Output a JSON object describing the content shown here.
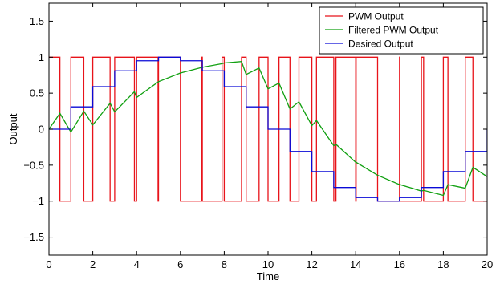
{
  "chart_data": {
    "type": "line",
    "title": "",
    "xlabel": "Time",
    "ylabel": "Output",
    "xlim": [
      0,
      20
    ],
    "ylim": [
      -1.75,
      1.75
    ],
    "x_ticks": [
      0,
      2,
      4,
      6,
      8,
      10,
      12,
      14,
      16,
      18,
      20
    ],
    "x_tick_labels": [
      "0",
      "2",
      "4",
      "6",
      "8",
      "10",
      "12",
      "14",
      "16",
      "18",
      "20"
    ],
    "y_ticks": [
      -1.5,
      -1,
      -0.5,
      0,
      0.5,
      1,
      1.5
    ],
    "y_tick_labels": [
      "−1.5",
      "−1",
      "−0.5",
      "0",
      "0.5",
      "1",
      "1.5"
    ],
    "grid": false,
    "legend_position": "top-right",
    "series": [
      {
        "name": "PWM Output",
        "color": "#e8131a",
        "step": true,
        "x": [
          0,
          0.5,
          0.5,
          1,
          1,
          1.59,
          1.59,
          2,
          2,
          2.79,
          2.79,
          3,
          3,
          3.9,
          3.9,
          4,
          4,
          4.98,
          4.98,
          5,
          5,
          6,
          6,
          6.98,
          6.98,
          7,
          7,
          7.9,
          7.9,
          8,
          8,
          8.79,
          8.79,
          9,
          9,
          9.59,
          9.59,
          10,
          10,
          10.5,
          10.5,
          11,
          11,
          11.41,
          11.41,
          12,
          12,
          12.21,
          12.21,
          13,
          13,
          13.1,
          13.1,
          14,
          14,
          14.02,
          14.02,
          15,
          15,
          16,
          16,
          16.02,
          16.02,
          17,
          17,
          17.1,
          17.1,
          18,
          18,
          18.21,
          18.21,
          19,
          19,
          19.35,
          19.35,
          20
        ],
        "y": [
          1,
          1,
          -1,
          -1,
          1,
          1,
          -1,
          -1,
          1,
          1,
          -1,
          -1,
          1,
          1,
          -1,
          -1,
          1,
          1,
          -1,
          -1,
          1,
          1,
          -1,
          -1,
          1,
          1,
          -1,
          -1,
          1,
          1,
          -1,
          -1,
          1,
          1,
          -1,
          -1,
          1,
          1,
          -1,
          -1,
          1,
          1,
          -1,
          -1,
          1,
          1,
          -1,
          -1,
          1,
          1,
          -1,
          -1,
          1,
          1,
          -1,
          -1,
          1,
          1,
          -1,
          -1,
          1,
          1,
          -1,
          -1,
          1,
          1,
          -1,
          -1,
          1,
          1,
          -1,
          -1,
          1,
          1,
          -1,
          -1
        ]
      },
      {
        "name": "Filtered PWM Output",
        "color": "#11a011",
        "step": false,
        "x": [
          0,
          0.5,
          1,
          1.59,
          2,
          2.79,
          3,
          3.9,
          4,
          5,
          6,
          7,
          7.9,
          8,
          8.79,
          9,
          9.59,
          10,
          10.5,
          11,
          11.41,
          12,
          12.21,
          13,
          13.1,
          14,
          14.02,
          15,
          16,
          16.02,
          17,
          17.1,
          18,
          18.21,
          19,
          19.35,
          20
        ],
        "y": [
          0,
          0.22,
          -0.04,
          0.25,
          0.06,
          0.36,
          0.24,
          0.52,
          0.44,
          0.66,
          0.78,
          0.86,
          0.91,
          0.92,
          0.94,
          0.76,
          0.85,
          0.56,
          0.64,
          0.28,
          0.38,
          0.05,
          0.12,
          -0.23,
          -0.21,
          -0.46,
          -0.46,
          -0.64,
          -0.77,
          -0.77,
          -0.86,
          -0.85,
          -0.92,
          -0.77,
          -0.82,
          -0.53,
          -0.66
        ]
      },
      {
        "name": "Desired Output",
        "color": "#0a0ad6",
        "step": true,
        "x": [
          0,
          1,
          1,
          2,
          2,
          3,
          3,
          4,
          4,
          5,
          5,
          6,
          6,
          7,
          7,
          8,
          8,
          9,
          9,
          10,
          10,
          11,
          11,
          12,
          12,
          13,
          13,
          14,
          14,
          15,
          15,
          16,
          16,
          17,
          17,
          18,
          18,
          19,
          19,
          20,
          20
        ],
        "y": [
          0,
          0,
          0.31,
          0.31,
          0.59,
          0.59,
          0.81,
          0.81,
          0.95,
          0.95,
          1,
          1,
          0.95,
          0.95,
          0.81,
          0.81,
          0.59,
          0.59,
          0.31,
          0.31,
          0,
          0,
          -0.31,
          -0.31,
          -0.59,
          -0.59,
          -0.81,
          -0.81,
          -0.95,
          -0.95,
          -1,
          -1,
          -0.95,
          -0.95,
          -0.81,
          -0.81,
          -0.59,
          -0.59,
          -0.31,
          -0.31,
          0
        ]
      }
    ]
  }
}
